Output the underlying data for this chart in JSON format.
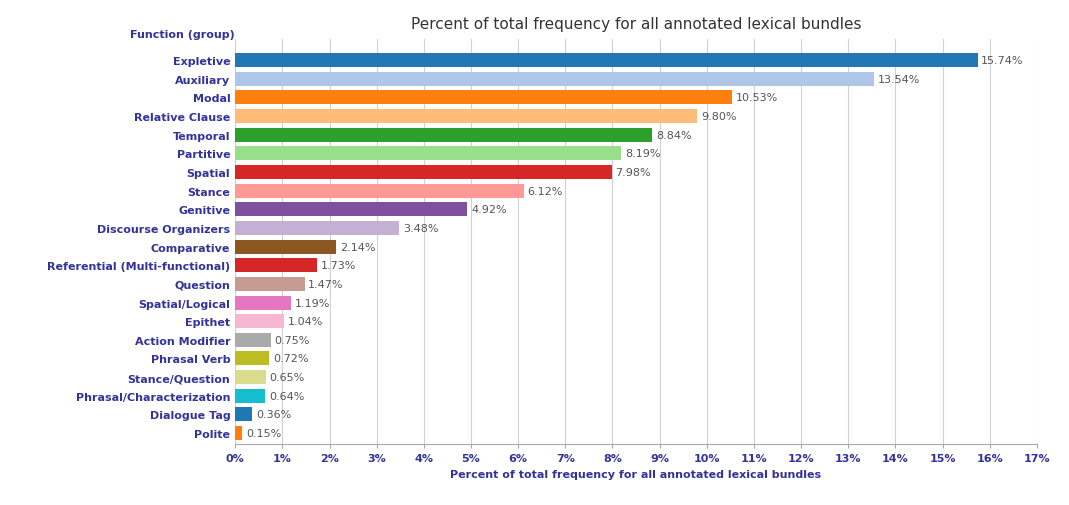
{
  "title": "Percent of total frequency for all annotated lexical bundles",
  "xlabel": "Percent of total frequency for all annotated lexical bundles",
  "ylabel_header": "Function (group)",
  "categories": [
    "Expletive",
    "Auxiliary",
    "Modal",
    "Relative Clause",
    "Temporal",
    "Partitive",
    "Spatial",
    "Stance",
    "Genitive",
    "Discourse Organizers",
    "Comparative",
    "Referential (Multi-functional)",
    "Question",
    "Spatial/Logical",
    "Epithet",
    "Action Modifier",
    "Phrasal Verb",
    "Stance/Question",
    "Phrasal/Characterization",
    "Dialogue Tag",
    "Polite"
  ],
  "values": [
    15.74,
    13.54,
    10.53,
    9.8,
    8.84,
    8.19,
    7.98,
    6.12,
    4.92,
    3.48,
    2.14,
    1.73,
    1.47,
    1.19,
    1.04,
    0.75,
    0.72,
    0.65,
    0.64,
    0.36,
    0.15
  ],
  "colors": [
    "#2278b5",
    "#aec7e8",
    "#ff7f0e",
    "#ffbb78",
    "#2ca02c",
    "#98df8a",
    "#d62728",
    "#ff9896",
    "#7f4fa0",
    "#c5b0d5",
    "#8c5622",
    "#d62728",
    "#c49c94",
    "#e377c2",
    "#f7b6d2",
    "#aaaaaa",
    "#bcbd22",
    "#dbdb8d",
    "#17becf",
    "#1f77b4",
    "#ff7f0e"
  ],
  "xlim": [
    0,
    17
  ],
  "xticks": [
    0,
    1,
    2,
    3,
    4,
    5,
    6,
    7,
    8,
    9,
    10,
    11,
    12,
    13,
    14,
    15,
    16,
    17
  ],
  "bar_height": 0.75,
  "label_fontsize": 8,
  "tick_fontsize": 8,
  "title_fontsize": 11,
  "background_color": "#ffffff",
  "grid_color": "#d0d0d0",
  "value_label_color": "#555555",
  "ytick_color": "#333399"
}
